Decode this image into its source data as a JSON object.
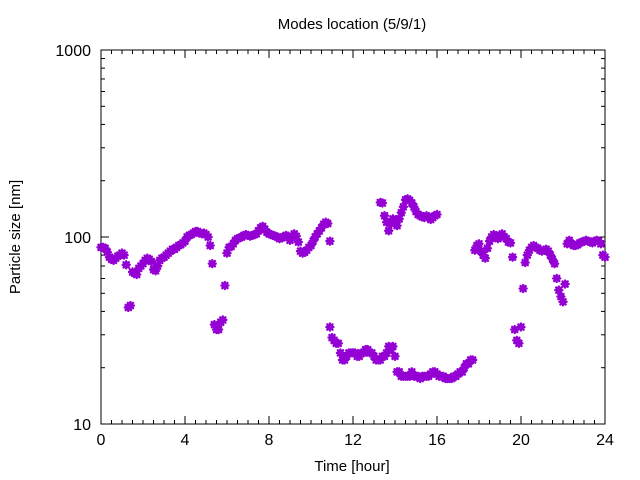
{
  "chart_data": {
    "type": "scatter",
    "title": "Modes location (5/9/1)",
    "xlabel": "Time [hour]",
    "ylabel": "Particle size [nm]",
    "xlim": [
      0,
      24
    ],
    "ylim": [
      10,
      1000
    ],
    "yscale": "log",
    "grid": false,
    "legend": "none",
    "marker_color": "#9400d3",
    "xticks": [
      0,
      4,
      8,
      12,
      16,
      20,
      24
    ],
    "xtick_labels": [
      "0",
      "4",
      "8",
      "12",
      "16",
      "20",
      "24"
    ],
    "yticks": [
      10,
      100,
      1000
    ],
    "ytick_labels": [
      "10",
      "100",
      "1000"
    ],
    "series": [
      {
        "x": [
          0.0,
          0.1,
          0.2,
          0.3,
          0.4,
          0.5,
          0.6,
          0.7,
          0.8,
          0.9,
          1.0,
          1.1,
          1.2,
          1.3,
          1.4,
          1.5,
          1.6,
          1.7,
          1.8,
          1.9,
          2.0,
          2.1,
          2.2,
          2.3,
          2.4,
          2.5,
          2.6,
          2.7,
          2.8,
          2.9,
          3.0,
          3.1,
          3.2,
          3.3,
          3.4,
          3.5,
          3.6,
          3.7,
          3.8,
          3.9,
          4.0,
          4.1,
          4.2,
          4.3,
          4.4,
          4.5,
          4.6,
          4.7,
          4.8,
          4.9,
          5.0,
          5.1,
          5.2,
          5.3,
          5.4,
          5.5,
          5.6,
          5.7,
          5.8,
          5.9,
          6.0,
          6.1,
          6.2,
          6.3,
          6.4,
          6.5,
          6.6,
          6.7,
          6.8,
          6.9,
          7.0,
          7.1,
          7.2,
          7.3,
          7.4,
          7.5,
          7.6,
          7.7,
          7.8,
          7.9,
          8.0,
          8.1,
          8.2,
          8.3,
          8.4,
          8.5,
          8.6,
          8.7,
          8.8,
          8.9,
          9.0,
          9.1,
          9.2,
          9.3,
          9.4,
          9.5,
          9.6,
          9.7,
          9.8,
          9.9,
          10.0,
          10.1,
          10.2,
          10.3,
          10.4,
          10.5,
          10.6,
          10.7,
          10.8,
          10.9
        ],
        "y": [
          88,
          88,
          87,
          83,
          78,
          76,
          75,
          77,
          79,
          80,
          82,
          80,
          71,
          42,
          43,
          65,
          64,
          63,
          68,
          70,
          72,
          75,
          77,
          76,
          74,
          67,
          66,
          70,
          75,
          77,
          78,
          80,
          82,
          84,
          86,
          86,
          88,
          90,
          91,
          93,
          95,
          100,
          102,
          103,
          105,
          107,
          107,
          105,
          104,
          105,
          103,
          100,
          90,
          72,
          34,
          32,
          32,
          35,
          36,
          55,
          82,
          88,
          89,
          92,
          96,
          98,
          99,
          100,
          102,
          103,
          102,
          101,
          102,
          103,
          104,
          108,
          112,
          114,
          110,
          106,
          104,
          103,
          102,
          101,
          100,
          98,
          99,
          100,
          102,
          101,
          96,
          100,
          104,
          101,
          94,
          84,
          82,
          83,
          85,
          88,
          90,
          95,
          100,
          104,
          108,
          112,
          117,
          120,
          118,
          95
        ]
      },
      {
        "x": [
          10.9,
          11.0,
          11.1,
          11.2,
          11.3,
          11.4,
          11.5,
          11.6,
          11.7,
          11.8,
          11.9,
          12.0,
          12.1,
          12.2,
          12.3,
          12.4,
          12.5,
          12.6,
          12.7,
          12.8,
          12.9,
          13.0,
          13.1,
          13.2,
          13.3,
          13.4,
          13.5,
          13.6,
          13.7,
          13.8,
          13.9,
          14.0,
          14.1,
          14.2,
          14.3,
          14.4,
          14.5,
          14.6,
          14.7,
          14.8,
          14.9,
          15.0,
          15.1,
          15.2,
          15.3,
          15.4,
          15.5,
          15.6,
          15.7,
          15.8,
          15.9,
          16.0,
          16.1,
          16.2,
          16.3,
          16.4,
          16.5,
          16.6,
          16.7,
          16.8,
          16.9,
          17.0,
          17.1,
          17.2,
          17.3,
          17.4,
          17.5,
          17.6,
          17.7
        ],
        "y": [
          33,
          29,
          28,
          27,
          27,
          24,
          22,
          22,
          23,
          24,
          24,
          24,
          24,
          23,
          23,
          24,
          24,
          25,
          25,
          24,
          24,
          23,
          22,
          22,
          22,
          23,
          23,
          24,
          26,
          25,
          26,
          23,
          19,
          19,
          18,
          18,
          18,
          18,
          18,
          19,
          18,
          18,
          18,
          17.5,
          18,
          18,
          18,
          18,
          18.5,
          19,
          19,
          18.5,
          18,
          18,
          18,
          17.5,
          17.5,
          17.5,
          17.5,
          18,
          18,
          18.5,
          19,
          19,
          20,
          21,
          21,
          22,
          22
        ]
      },
      {
        "x": [
          13.3,
          13.4,
          13.5,
          13.6,
          13.7,
          13.8,
          13.9,
          14.0,
          14.1,
          14.2,
          14.3,
          14.4,
          14.5,
          14.6,
          14.7,
          14.8,
          14.9,
          15.0,
          15.1,
          15.2,
          15.3,
          15.4,
          15.5,
          15.6,
          15.7,
          15.8,
          15.9,
          16.0
        ],
        "y": [
          153,
          152,
          130,
          120,
          108,
          118,
          125,
          120,
          115,
          125,
          135,
          145,
          158,
          160,
          157,
          152,
          145,
          137,
          132,
          130,
          128,
          127,
          130,
          128,
          124,
          127,
          130,
          132
        ]
      },
      {
        "x": [
          17.8,
          17.9,
          18.0,
          18.1,
          18.2,
          18.3,
          18.4,
          18.5,
          18.6,
          18.7,
          18.8,
          18.9,
          19.0,
          19.1,
          19.2,
          19.3,
          19.4,
          19.5,
          19.6,
          19.7,
          19.8,
          19.9,
          20.0,
          20.1,
          20.2,
          20.3,
          20.4,
          20.5,
          20.6,
          20.7,
          20.8,
          20.9,
          21.0,
          21.1,
          21.2,
          21.3,
          21.4,
          21.5,
          21.6,
          21.7,
          21.8,
          21.9,
          22.0,
          22.1,
          22.2,
          22.3,
          22.4,
          22.5,
          22.6,
          22.7,
          22.8,
          22.9,
          23.0,
          23.1,
          23.2,
          23.3,
          23.4,
          23.5,
          23.6,
          23.7,
          23.8,
          23.9,
          24.0
        ],
        "y": [
          85,
          90,
          92,
          84,
          80,
          77,
          87,
          95,
          100,
          103,
          100,
          98,
          102,
          104,
          100,
          98,
          94,
          93,
          78,
          32,
          28,
          27,
          33,
          53,
          73,
          80,
          85,
          88,
          90,
          88,
          87,
          85,
          84,
          85,
          86,
          84,
          80,
          76,
          72,
          60,
          52,
          48,
          45,
          56,
          92,
          96,
          92,
          90,
          90,
          91,
          93,
          94,
          95,
          96,
          95,
          94,
          93,
          95,
          96,
          95,
          92,
          80,
          78
        ]
      }
    ]
  }
}
